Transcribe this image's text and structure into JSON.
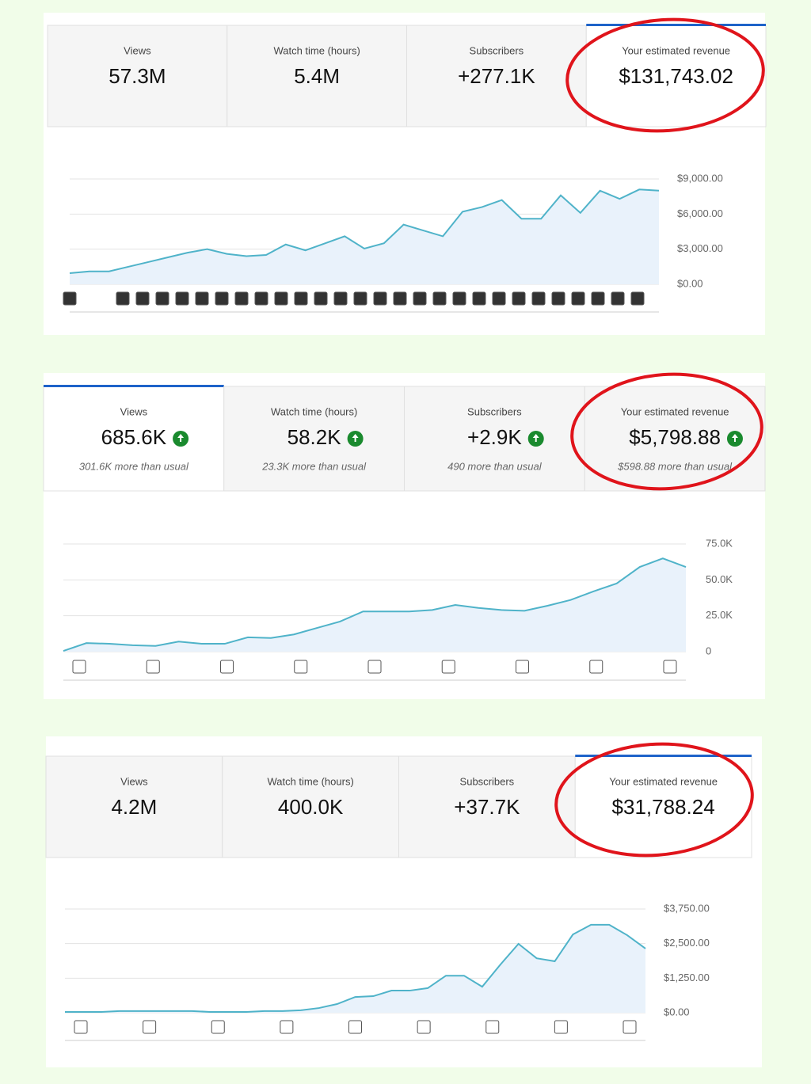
{
  "panels": [
    {
      "cards": [
        {
          "label": "Views",
          "value": "57.3M"
        },
        {
          "label": "Watch time (hours)",
          "value": "5.4M"
        },
        {
          "label": "Subscribers",
          "value": "+277.1K"
        },
        {
          "label": "Your estimated revenue",
          "value": "$131,743.02"
        }
      ],
      "chart": {
        "type": "line",
        "color": "#4fb3c9",
        "values": [
          950,
          1100,
          1100,
          1500,
          1900,
          2300,
          2700,
          3000,
          2600,
          2400,
          2500,
          3400,
          2900,
          3500,
          4100,
          3050,
          3500,
          5100,
          4600,
          4100,
          6200,
          6600,
          7200,
          5600,
          5600,
          7600,
          6100,
          8000,
          7300,
          8100,
          8000
        ],
        "ylim": [
          0,
          9000
        ],
        "yticks": [
          {
            "value": 0,
            "label": "$0.00"
          },
          {
            "value": 3000,
            "label": "$3,000.00"
          },
          {
            "value": 6000,
            "label": "$6,000.00"
          },
          {
            "value": 9000,
            "label": "$9,000.00"
          }
        ]
      }
    },
    {
      "cards": [
        {
          "label": "Views",
          "value": "685.6K",
          "note": "301.6K more than usual"
        },
        {
          "label": "Watch time (hours)",
          "value": "58.2K",
          "note": "23.3K more than usual"
        },
        {
          "label": "Subscribers",
          "value": "+2.9K",
          "note": "490 more than usual"
        },
        {
          "label": "Your estimated revenue",
          "value": "$5,798.88",
          "note": "$598.88 more than usual"
        }
      ],
      "chart": {
        "type": "line",
        "color": "#4fb3c9",
        "values": [
          500,
          6000,
          5500,
          4500,
          4000,
          7000,
          5500,
          5500,
          10000,
          9500,
          12000,
          16500,
          21000,
          28000,
          28000,
          28000,
          29000,
          32500,
          30500,
          29000,
          28500,
          32000,
          36000,
          42000,
          47500,
          59000,
          65000,
          59000
        ],
        "ylim": [
          0,
          75000
        ],
        "yticks": [
          0,
          {
            "value": 25000,
            "label": "25.0K"
          },
          {
            "value": 50000,
            "label": "50.0K"
          },
          {
            "value": 75000,
            "label": "75.0K"
          }
        ]
      }
    },
    {
      "cards": [
        {
          "label": "Views",
          "value": "4.2M"
        },
        {
          "label": "Watch time (hours)",
          "value": "400.0K"
        },
        {
          "label": "Subscribers",
          "value": "+37.7K"
        },
        {
          "label": "Your estimated revenue",
          "value": "$31,788.24"
        }
      ],
      "chart": {
        "type": "line",
        "color": "#4fb3c9",
        "values": [
          30,
          30,
          30,
          60,
          60,
          60,
          60,
          60,
          30,
          30,
          30,
          60,
          60,
          90,
          170,
          315,
          570,
          600,
          800,
          800,
          890,
          1340,
          1340,
          940,
          1740,
          2490,
          1970,
          1860,
          2830,
          3180,
          3180,
          2800,
          2320
        ],
        "ylim": [
          0,
          3750
        ],
        "yticks": [
          {
            "value": 0,
            "label": "$0.00"
          },
          {
            "value": 1250,
            "label": "$1,250.00"
          },
          {
            "value": 2500,
            "label": "$2,500.00"
          },
          {
            "value": 3750,
            "label": "$3,750.00"
          }
        ]
      }
    }
  ]
}
